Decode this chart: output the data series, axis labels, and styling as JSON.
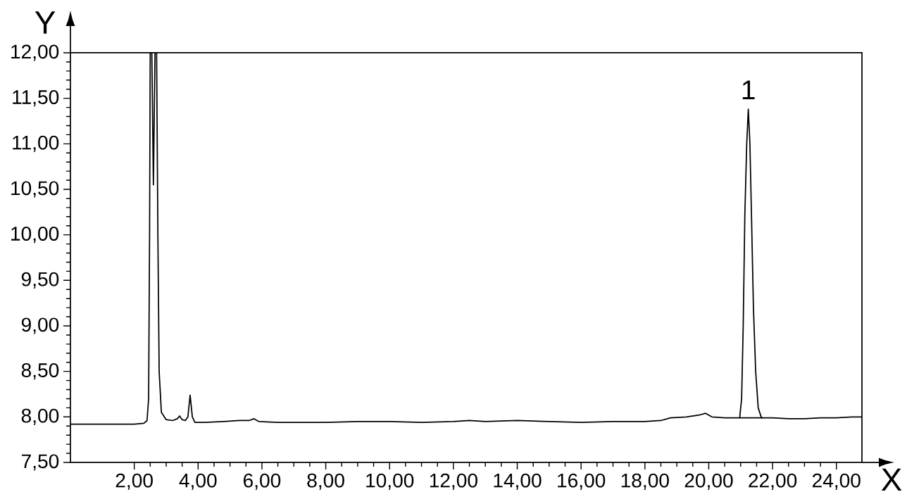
{
  "chart_data": {
    "type": "line",
    "xlabel": "X",
    "ylabel": "Y",
    "xlim": [
      0,
      24.8
    ],
    "ylim": [
      7.5,
      12
    ],
    "xticks": [
      {
        "value": 2,
        "label": "2,00"
      },
      {
        "value": 4,
        "label": "4,00"
      },
      {
        "value": 6,
        "label": "6,00"
      },
      {
        "value": 8,
        "label": "8,00"
      },
      {
        "value": 10,
        "label": "10,00"
      },
      {
        "value": 12,
        "label": "12,00"
      },
      {
        "value": 14,
        "label": "14,00"
      },
      {
        "value": 16,
        "label": "16,00"
      },
      {
        "value": 18,
        "label": "18,00"
      },
      {
        "value": 20,
        "label": "20,00"
      },
      {
        "value": 22,
        "label": "22,00"
      },
      {
        "value": 24,
        "label": "24,00"
      }
    ],
    "yticks": [
      {
        "value": 7.5,
        "label": "7,50"
      },
      {
        "value": 8,
        "label": "8,00"
      },
      {
        "value": 8.5,
        "label": "8,50"
      },
      {
        "value": 9,
        "label": "9,00"
      },
      {
        "value": 9.5,
        "label": "9,50"
      },
      {
        "value": 10,
        "label": "10,00"
      },
      {
        "value": 10.5,
        "label": "10,50"
      },
      {
        "value": 11,
        "label": "11,00"
      },
      {
        "value": 11.5,
        "label": "11,50"
      },
      {
        "value": 12,
        "label": "12,00"
      }
    ],
    "grid": false,
    "marker": "none",
    "line_style": "solid",
    "annotations": [
      {
        "text": "1",
        "x": 21.24,
        "y": 11.38
      }
    ],
    "series": [
      {
        "color": "#000000",
        "x": [
          0,
          0.5,
          1.0,
          1.5,
          2.0,
          2.3,
          2.4,
          2.45,
          2.48,
          2.5,
          2.55,
          2.6,
          2.65,
          2.7,
          2.74,
          2.78,
          2.85,
          3.0,
          3.2,
          3.35,
          3.42,
          3.5,
          3.6,
          3.68,
          3.75,
          3.82,
          3.9,
          4.2,
          4.8,
          5.3,
          5.6,
          5.75,
          5.9,
          6.5,
          7.0,
          8.0,
          9.0,
          10.0,
          11.0,
          12.0,
          12.5,
          13.0,
          14.0,
          15.0,
          16.0,
          17.0,
          18.0,
          18.5,
          18.8,
          19.3,
          19.7,
          19.9,
          20.1,
          20.5,
          20.97,
          21.03,
          21.08,
          21.13,
          21.19,
          21.24,
          21.29,
          21.34,
          21.4,
          21.47,
          21.55,
          21.65,
          22.0,
          22.5,
          23.0,
          23.5,
          24.0,
          24.5,
          24.8
        ],
        "values": [
          7.92,
          7.92,
          7.92,
          7.92,
          7.92,
          7.93,
          7.96,
          8.2,
          10,
          12,
          12,
          10.55,
          12,
          12,
          10,
          8.5,
          8.05,
          7.97,
          7.96,
          7.98,
          8.01,
          7.97,
          7.96,
          8.0,
          8.24,
          8.0,
          7.94,
          7.94,
          7.95,
          7.96,
          7.96,
          7.98,
          7.95,
          7.94,
          7.94,
          7.94,
          7.95,
          7.95,
          7.94,
          7.95,
          7.96,
          7.95,
          7.96,
          7.95,
          7.94,
          7.95,
          7.95,
          7.96,
          7.99,
          8.0,
          8.02,
          8.04,
          8.0,
          7.99,
          7.99,
          8.2,
          9.0,
          10.2,
          11.0,
          11.38,
          11.0,
          10.2,
          9.2,
          8.5,
          8.1,
          7.99,
          7.99,
          7.98,
          7.98,
          7.99,
          7.99,
          8.0,
          8.0
        ]
      },
      {
        "color": "#000000",
        "x": [
          20.97,
          21.7
        ],
        "values": [
          7.99,
          7.99
        ]
      }
    ]
  }
}
